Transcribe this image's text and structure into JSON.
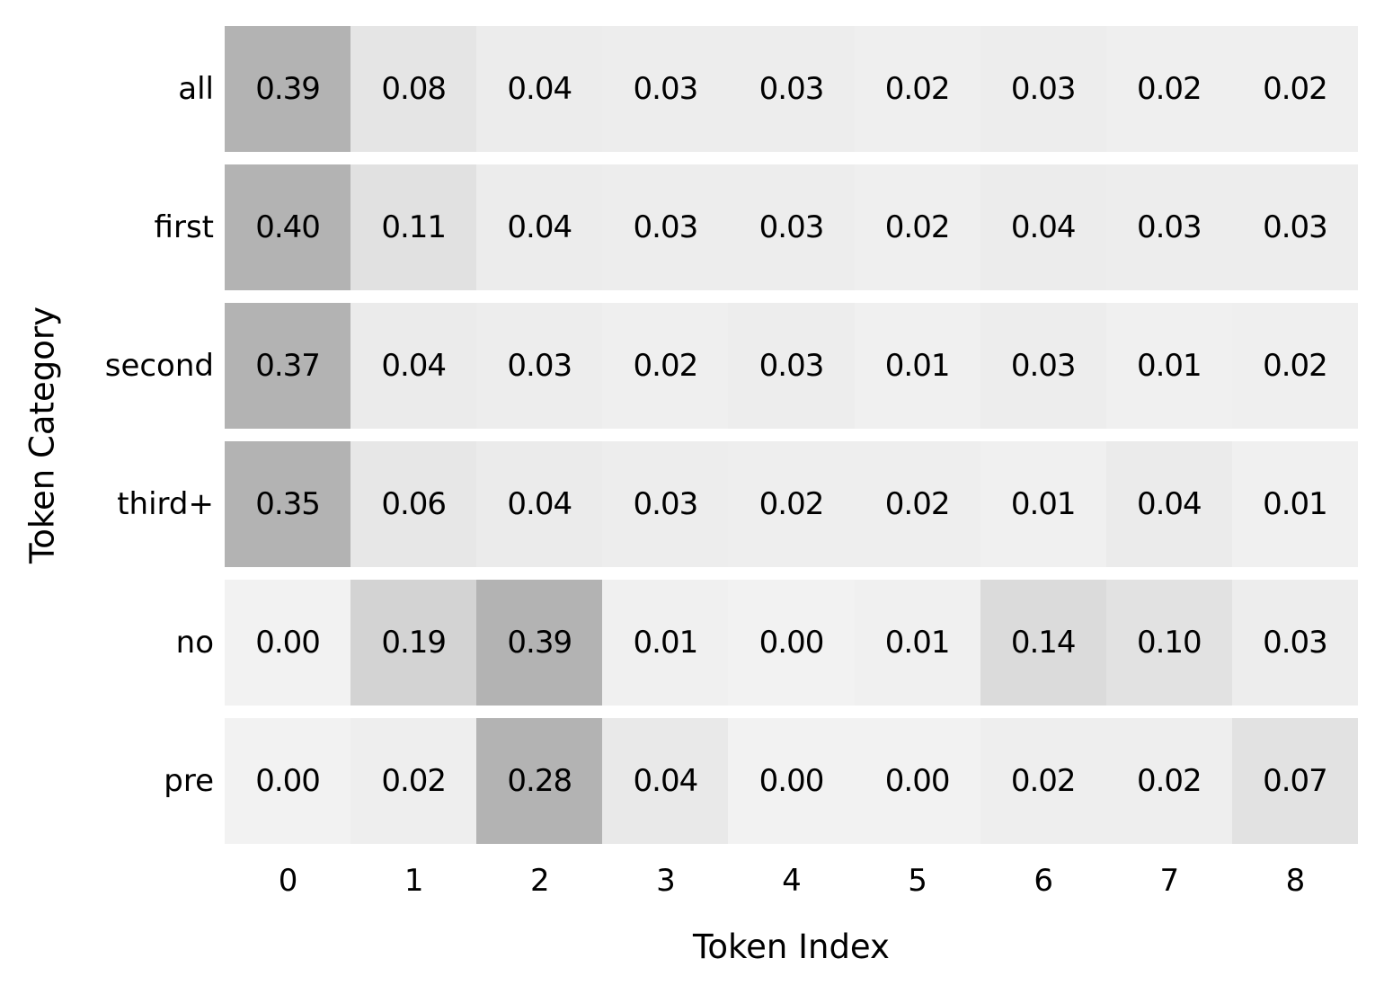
{
  "figure": {
    "background": "#ffffff",
    "text_color": "#000000"
  },
  "chart_data": {
    "type": "heatmap",
    "title": "",
    "xlabel": "Token Index",
    "ylabel": "Token Category",
    "x_ticks": [
      "0",
      "1",
      "2",
      "3",
      "4",
      "5",
      "6",
      "7",
      "8"
    ],
    "y_categories": [
      "all",
      "first",
      "second",
      "third+",
      "no",
      "pre"
    ],
    "series": [
      {
        "name": "all",
        "values": [
          0.39,
          0.08,
          0.04,
          0.03,
          0.03,
          0.02,
          0.03,
          0.02,
          0.02
        ]
      },
      {
        "name": "first",
        "values": [
          0.4,
          0.11,
          0.04,
          0.03,
          0.03,
          0.02,
          0.04,
          0.03,
          0.03
        ]
      },
      {
        "name": "second",
        "values": [
          0.37,
          0.04,
          0.03,
          0.02,
          0.03,
          0.01,
          0.03,
          0.01,
          0.02
        ]
      },
      {
        "name": "third+",
        "values": [
          0.35,
          0.06,
          0.04,
          0.03,
          0.02,
          0.02,
          0.01,
          0.04,
          0.01
        ]
      },
      {
        "name": "no",
        "values": [
          0.0,
          0.19,
          0.39,
          0.01,
          0.0,
          0.01,
          0.14,
          0.1,
          0.03
        ]
      },
      {
        "name": "pre",
        "values": [
          0.0,
          0.02,
          0.28,
          0.04,
          0.0,
          0.0,
          0.02,
          0.02,
          0.07
        ]
      }
    ],
    "value_format": "two_decimals",
    "annotations_shown": true,
    "normalization": "per-row-max",
    "colormap": {
      "min_color": "#f2f2f2",
      "max_color": "#b3b3b3"
    },
    "grid": false,
    "legend_position": "none",
    "row_gap_color": "#ffffff"
  }
}
